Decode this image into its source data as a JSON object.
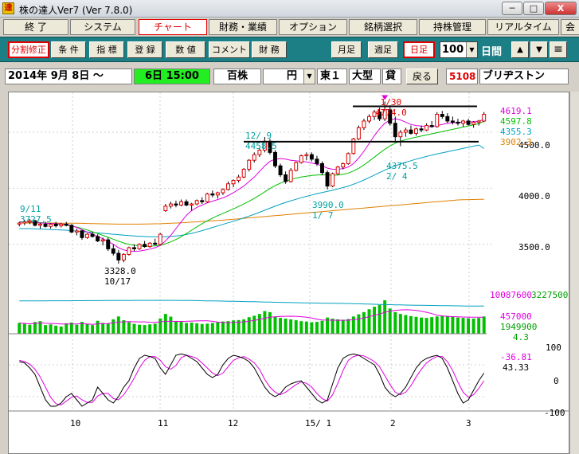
{
  "window": {
    "app_icon": "達",
    "title": "株の達人Ver7 (Ver 7.8.0)",
    "minimize": "─",
    "maximize": "□",
    "close": "X"
  },
  "menu": [
    "終 了",
    "システム",
    "チャート",
    "財務・業績",
    "オプション",
    "銘柄選択",
    "持株管理",
    "リアルタイム",
    "会"
  ],
  "toolbar": {
    "buttons": [
      "分割修正",
      "条 件",
      "指 標",
      "登 録",
      "数 値",
      "コメント",
      "財 務"
    ],
    "period_buttons": [
      "月足",
      "週足",
      "日足"
    ],
    "count_value": "100",
    "unit_label": "日間",
    "arrows": [
      "▲",
      "▼"
    ],
    "menu_icon": "≡"
  },
  "infobar": {
    "date_start": "2014年 9月 8日 〜",
    "date_range": "6日 15:00",
    "volume_unit": "百株",
    "price_unit": "円",
    "market": "東１",
    "size": "大型",
    "sector_short": "貸",
    "back_button": "戻る",
    "code": "5108",
    "name": "ブリヂストン"
  },
  "chart_data": {
    "type": "line",
    "x_ticks": [
      "10",
      "11",
      "12",
      "15/ 1",
      "2",
      "3"
    ],
    "price_axis": [
      "4500.0",
      "4000.0",
      "3500.0"
    ],
    "price_range": [
      3150,
      4820
    ],
    "legend_right": [
      {
        "text": "4619.1",
        "color": "#e000e0"
      },
      {
        "text": "4597.8",
        "color": "#00c000"
      },
      {
        "text": "4355.3",
        "color": "#00a0c0"
      },
      {
        "text": "3902.3",
        "color": "#e08000"
      }
    ],
    "annotations": [
      {
        "lines": [
          "9/11",
          "3727.5"
        ],
        "color": "#00a0a0"
      },
      {
        "lines": [
          "3328.0",
          "10/17"
        ],
        "color": "#000000"
      },
      {
        "lines": [
          "12/ 9",
          "4458.5"
        ],
        "color": "#00a0a0"
      },
      {
        "lines": [
          "3990.0",
          "1/ 7"
        ],
        "color": "#00a0a0"
      },
      {
        "lines": [
          "1/30",
          "4774.0"
        ],
        "color": "#e00000"
      },
      {
        "lines": [
          "4375.5",
          "2/ 4"
        ],
        "color": "#00a0a0"
      }
    ],
    "resistance_level": 4774,
    "support_level": 4458.5,
    "volume_legend": [
      {
        "text": "10087600",
        "color": "#e000e0"
      },
      {
        "text": "3227500",
        "color": "#00a000"
      },
      {
        "text": "457000",
        "color": "#e000e0"
      },
      {
        "text": "1949900",
        "color": "#00a000"
      },
      {
        "text": "4.3",
        "color": "#00a000"
      }
    ],
    "oscillator_axis": [
      "100",
      "0",
      "-100"
    ],
    "oscillator_legend": [
      {
        "text": "-36.81",
        "color": "#e000e0"
      },
      {
        "text": "43.33",
        "color": "#000000"
      }
    ],
    "ohlc": [
      [
        3680,
        3700,
        3660,
        3690
      ],
      [
        3690,
        3720,
        3670,
        3700
      ],
      [
        3700,
        3727,
        3680,
        3710
      ],
      [
        3710,
        3720,
        3660,
        3670
      ],
      [
        3670,
        3690,
        3640,
        3680
      ],
      [
        3680,
        3700,
        3650,
        3660
      ],
      [
        3660,
        3690,
        3640,
        3680
      ],
      [
        3680,
        3700,
        3650,
        3665
      ],
      [
        3665,
        3690,
        3650,
        3680
      ],
      [
        3680,
        3700,
        3660,
        3670
      ],
      [
        3670,
        3680,
        3600,
        3610
      ],
      [
        3610,
        3640,
        3580,
        3620
      ],
      [
        3620,
        3630,
        3540,
        3560
      ],
      [
        3560,
        3600,
        3550,
        3590
      ],
      [
        3590,
        3610,
        3560,
        3570
      ],
      [
        3570,
        3590,
        3520,
        3530
      ],
      [
        3530,
        3560,
        3490,
        3540
      ],
      [
        3540,
        3560,
        3440,
        3460
      ],
      [
        3460,
        3500,
        3400,
        3420
      ],
      [
        3420,
        3450,
        3328,
        3360
      ],
      [
        3360,
        3420,
        3340,
        3410
      ],
      [
        3410,
        3480,
        3400,
        3470
      ],
      [
        3470,
        3500,
        3440,
        3460
      ],
      [
        3460,
        3510,
        3450,
        3500
      ],
      [
        3500,
        3530,
        3470,
        3480
      ],
      [
        3480,
        3520,
        3470,
        3510
      ],
      [
        3510,
        3550,
        3490,
        3500
      ],
      [
        3500,
        3600,
        3490,
        3590
      ],
      [
        3800,
        3860,
        3790,
        3840
      ],
      [
        3840,
        3880,
        3820,
        3860
      ],
      [
        3860,
        3890,
        3830,
        3850
      ],
      [
        3850,
        3900,
        3840,
        3880
      ],
      [
        3880,
        3900,
        3840,
        3850
      ],
      [
        3850,
        3870,
        3800,
        3860
      ],
      [
        3860,
        3900,
        3850,
        3890
      ],
      [
        3890,
        3920,
        3860,
        3880
      ],
      [
        3880,
        3960,
        3870,
        3950
      ],
      [
        3950,
        3980,
        3920,
        3940
      ],
      [
        3940,
        3970,
        3910,
        3960
      ],
      [
        3960,
        4000,
        3940,
        3990
      ],
      [
        3990,
        4060,
        3980,
        4040
      ],
      [
        4040,
        4080,
        4010,
        4070
      ],
      [
        4070,
        4120,
        4050,
        4100
      ],
      [
        4100,
        4180,
        4090,
        4170
      ],
      [
        4170,
        4260,
        4150,
        4250
      ],
      [
        4250,
        4320,
        4230,
        4300
      ],
      [
        4300,
        4360,
        4280,
        4340
      ],
      [
        4340,
        4458,
        4320,
        4420
      ],
      [
        4420,
        4440,
        4300,
        4320
      ],
      [
        4320,
        4340,
        4180,
        4200
      ],
      [
        4200,
        4220,
        4100,
        4120
      ],
      [
        4120,
        4150,
        4040,
        4060
      ],
      [
        4060,
        4180,
        4050,
        4160
      ],
      [
        4160,
        4240,
        4150,
        4230
      ],
      [
        4230,
        4300,
        4220,
        4290
      ],
      [
        4290,
        4320,
        4250,
        4300
      ],
      [
        4300,
        4320,
        4240,
        4260
      ],
      [
        4260,
        4290,
        4200,
        4220
      ],
      [
        4220,
        4240,
        4120,
        4140
      ],
      [
        4140,
        4160,
        3990,
        4020
      ],
      [
        4020,
        4140,
        4010,
        4130
      ],
      [
        4130,
        4200,
        4120,
        4190
      ],
      [
        4190,
        4230,
        4170,
        4220
      ],
      [
        4220,
        4320,
        4210,
        4310
      ],
      [
        4310,
        4450,
        4300,
        4440
      ],
      [
        4440,
        4560,
        4430,
        4540
      ],
      [
        4540,
        4620,
        4520,
        4600
      ],
      [
        4600,
        4660,
        4580,
        4640
      ],
      [
        4640,
        4700,
        4610,
        4680
      ],
      [
        4680,
        4720,
        4600,
        4620
      ],
      [
        4620,
        4774,
        4600,
        4700
      ],
      [
        4700,
        4740,
        4560,
        4580
      ],
      [
        4580,
        4640,
        4420,
        4460
      ],
      [
        4460,
        4520,
        4376,
        4500
      ],
      [
        4500,
        4540,
        4460,
        4520
      ],
      [
        4520,
        4560,
        4480,
        4490
      ],
      [
        4490,
        4540,
        4470,
        4530
      ],
      [
        4530,
        4560,
        4500,
        4520
      ],
      [
        4520,
        4580,
        4510,
        4560
      ],
      [
        4560,
        4600,
        4540,
        4550
      ],
      [
        4550,
        4680,
        4540,
        4660
      ],
      [
        4660,
        4690,
        4620,
        4640
      ],
      [
        4640,
        4670,
        4580,
        4600
      ],
      [
        4600,
        4640,
        4570,
        4590
      ],
      [
        4590,
        4620,
        4560,
        4580
      ],
      [
        4580,
        4610,
        4550,
        4600
      ],
      [
        4600,
        4620,
        4560,
        4570
      ],
      [
        4570,
        4600,
        4540,
        4590
      ],
      [
        4590,
        4610,
        4560,
        4600
      ],
      [
        4600,
        4680,
        4590,
        4660
      ]
    ],
    "ma_short": [
      3700,
      3700,
      3700,
      3695,
      3690,
      3688,
      3686,
      3684,
      3682,
      3678,
      3666,
      3650,
      3630,
      3610,
      3592,
      3570,
      3550,
      3525,
      3500,
      3470,
      3450,
      3440,
      3438,
      3440,
      3448,
      3458,
      3470,
      3490,
      3530,
      3580,
      3640,
      3700,
      3760,
      3800,
      3830,
      3850,
      3870,
      3885,
      3900,
      3915,
      3935,
      3960,
      3990,
      4020,
      4060,
      4100,
      4150,
      4200,
      4240,
      4260,
      4265,
      4260,
      4250,
      4245,
      4240,
      4235,
      4225,
      4215,
      4200,
      4180,
      4170,
      4170,
      4175,
      4190,
      4220,
      4270,
      4330,
      4400,
      4470,
      4530,
      4580,
      4610,
      4620,
      4610,
      4590,
      4570,
      4560,
      4555,
      4550,
      4550,
      4560,
      4570,
      4580,
      4585,
      4588,
      4590,
      4592,
      4594,
      4596,
      4619
    ],
    "ma_mid": [
      3700,
      3700,
      3698,
      3696,
      3694,
      3690,
      3686,
      3682,
      3678,
      3672,
      3664,
      3654,
      3642,
      3628,
      3612,
      3596,
      3580,
      3563,
      3546,
      3528,
      3512,
      3500,
      3492,
      3487,
      3484,
      3484,
      3486,
      3492,
      3505,
      3522,
      3543,
      3568,
      3596,
      3626,
      3656,
      3684,
      3710,
      3734,
      3756,
      3776,
      3796,
      3816,
      3838,
      3860,
      3884,
      3910,
      3938,
      3968,
      3998,
      4024,
      4046,
      4064,
      4078,
      4090,
      4100,
      4108,
      4114,
      4118,
      4120,
      4118,
      4116,
      4118,
      4124,
      4136,
      4154,
      4178,
      4208,
      4242,
      4278,
      4314,
      4348,
      4378,
      4402,
      4420,
      4434,
      4446,
      4456,
      4466,
      4476,
      4486,
      4496,
      4506,
      4516,
      4526,
      4536,
      4546,
      4556,
      4566,
      4576,
      4598
    ],
    "ma_long": [
      3640,
      3640,
      3640,
      3638,
      3636,
      3634,
      3632,
      3630,
      3628,
      3626,
      3622,
      3618,
      3614,
      3610,
      3606,
      3602,
      3598,
      3594,
      3590,
      3586,
      3582,
      3578,
      3575,
      3572,
      3570,
      3568,
      3567,
      3567,
      3568,
      3570,
      3574,
      3580,
      3588,
      3598,
      3610,
      3622,
      3636,
      3650,
      3664,
      3678,
      3692,
      3706,
      3720,
      3736,
      3752,
      3768,
      3786,
      3804,
      3822,
      3840,
      3858,
      3874,
      3888,
      3902,
      3916,
      3928,
      3940,
      3952,
      3962,
      3972,
      3982,
      3994,
      4006,
      4020,
      4036,
      4054,
      4074,
      4096,
      4118,
      4140,
      4162,
      4182,
      4200,
      4216,
      4232,
      4246,
      4260,
      4272,
      4284,
      4296,
      4306,
      4316,
      4326,
      4336,
      4346,
      4356,
      4366,
      4376,
      4386,
      4355
    ],
    "ma_vlong": [
      3690,
      3690,
      3690,
      3690,
      3690,
      3690,
      3690,
      3690,
      3689,
      3689,
      3688,
      3688,
      3687,
      3686,
      3685,
      3684,
      3683,
      3682,
      3681,
      3680,
      3680,
      3680,
      3680,
      3680,
      3681,
      3682,
      3683,
      3684,
      3686,
      3688,
      3690,
      3692,
      3695,
      3698,
      3701,
      3704,
      3707,
      3710,
      3713,
      3716,
      3720,
      3724,
      3728,
      3732,
      3736,
      3740,
      3744,
      3748,
      3752,
      3756,
      3760,
      3764,
      3768,
      3772,
      3776,
      3780,
      3784,
      3788,
      3792,
      3796,
      3800,
      3804,
      3808,
      3812,
      3816,
      3820,
      3824,
      3828,
      3832,
      3836,
      3840,
      3844,
      3848,
      3852,
      3856,
      3860,
      3864,
      3868,
      3872,
      3876,
      3880,
      3884,
      3888,
      3892,
      3896,
      3898,
      3899,
      3900,
      3901,
      3902
    ],
    "volume": [
      60,
      55,
      50,
      65,
      70,
      48,
      52,
      45,
      40,
      58,
      62,
      50,
      66,
      55,
      48,
      72,
      60,
      58,
      80,
      96,
      75,
      64,
      55,
      50,
      48,
      52,
      56,
      85,
      110,
      95,
      70,
      66,
      60,
      62,
      58,
      54,
      56,
      60,
      64,
      68,
      70,
      74,
      76,
      80,
      92,
      100,
      110,
      126,
      120,
      96,
      88,
      84,
      80,
      75,
      70,
      68,
      64,
      66,
      72,
      90,
      84,
      80,
      78,
      82,
      96,
      108,
      120,
      136,
      150,
      160,
      186,
      140,
      120,
      110,
      104,
      98,
      94,
      90,
      88,
      92,
      96,
      100,
      98,
      94,
      90,
      88,
      86,
      84,
      88,
      96
    ],
    "stoch_k": [
      80,
      78,
      70,
      60,
      40,
      20,
      10,
      10,
      15,
      25,
      30,
      20,
      10,
      15,
      20,
      40,
      30,
      20,
      15,
      25,
      40,
      50,
      70,
      85,
      90,
      88,
      85,
      70,
      60,
      75,
      90,
      92,
      90,
      85,
      80,
      70,
      60,
      55,
      60,
      75,
      85,
      90,
      88,
      85,
      80,
      70,
      55,
      40,
      30,
      25,
      30,
      40,
      45,
      48,
      50,
      40,
      30,
      20,
      15,
      20,
      45,
      70,
      85,
      90,
      92,
      90,
      85,
      80,
      75,
      60,
      40,
      30,
      25,
      30,
      40,
      55,
      70,
      80,
      85,
      88,
      90,
      85,
      70,
      50,
      30,
      15,
      20,
      35,
      50,
      62
    ],
    "stoch_d": [
      82,
      80,
      76,
      68,
      56,
      40,
      24,
      14,
      12,
      18,
      24,
      26,
      20,
      16,
      16,
      26,
      30,
      30,
      22,
      20,
      28,
      40,
      54,
      70,
      82,
      88,
      88,
      82,
      72,
      68,
      74,
      86,
      90,
      88,
      85,
      78,
      70,
      62,
      58,
      62,
      72,
      82,
      86,
      88,
      84,
      78,
      68,
      52,
      40,
      32,
      28,
      32,
      38,
      44,
      48,
      46,
      40,
      30,
      22,
      18,
      28,
      46,
      66,
      82,
      88,
      90,
      89,
      85,
      80,
      72,
      58,
      44,
      32,
      28,
      32,
      42,
      56,
      68,
      78,
      84,
      88,
      88,
      80,
      66,
      48,
      32,
      24,
      28,
      38,
      50
    ]
  }
}
